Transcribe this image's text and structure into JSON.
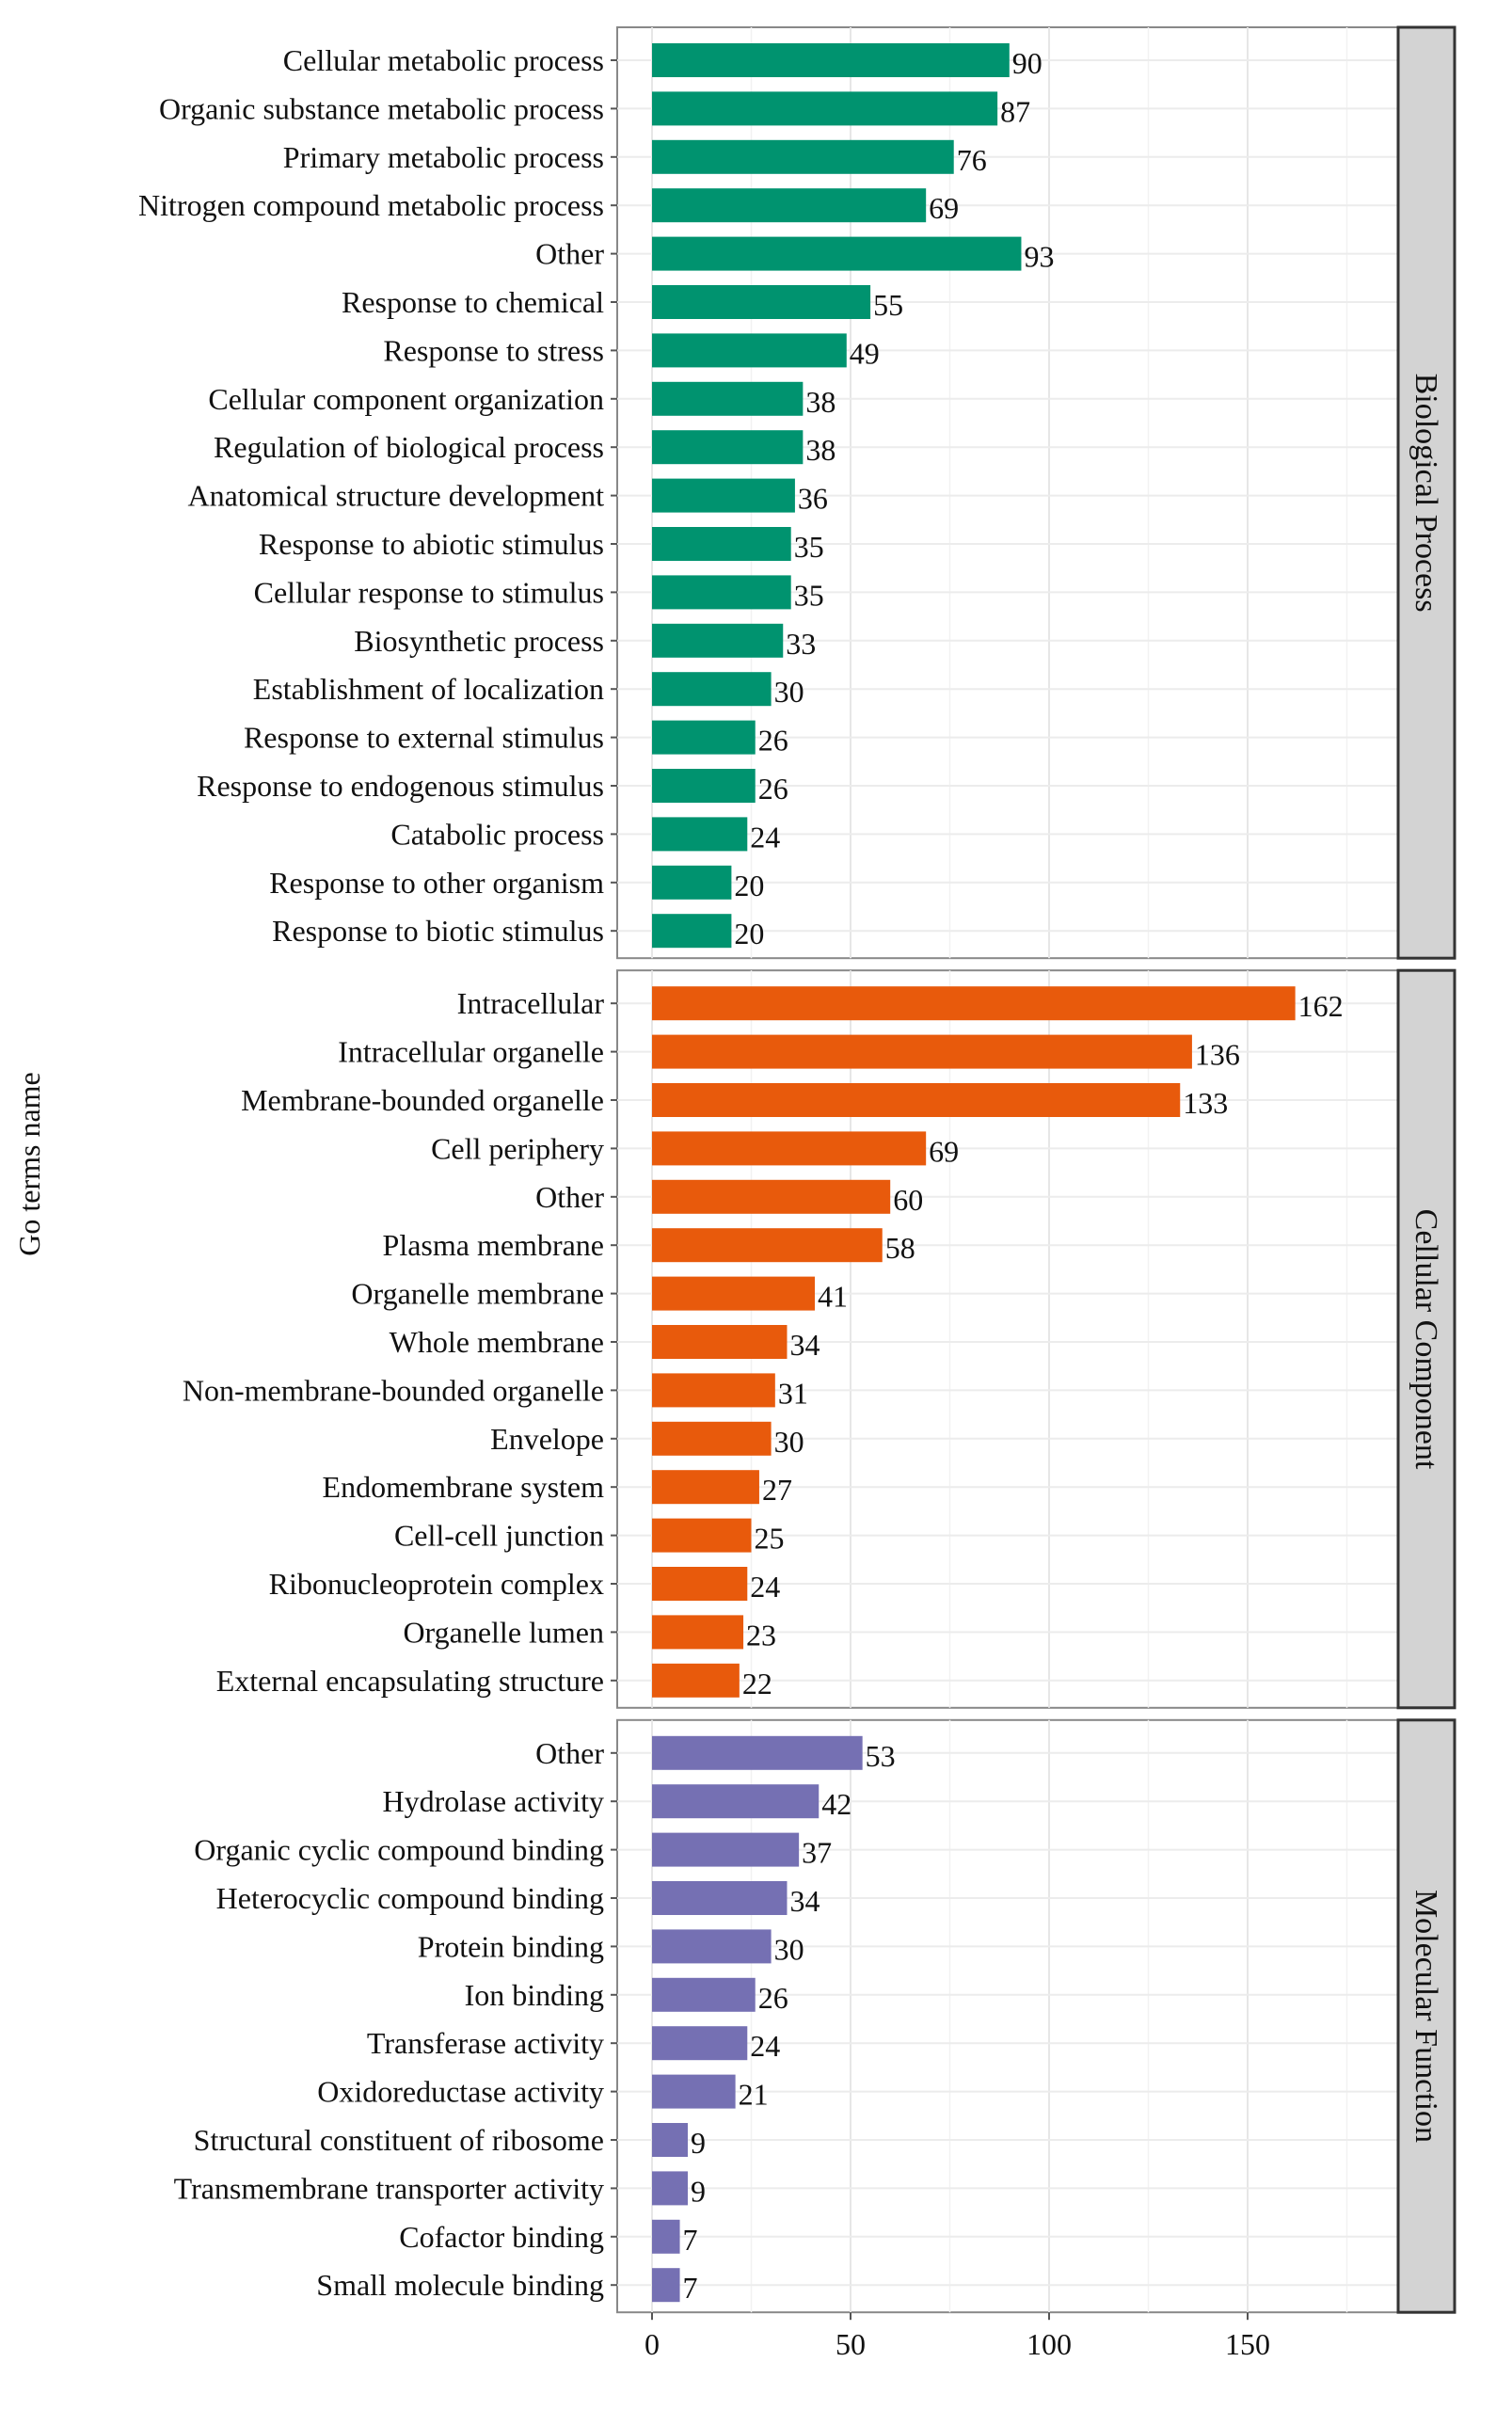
{
  "chart_data": {
    "type": "bar",
    "orientation": "horizontal",
    "title": "",
    "xlabel": "",
    "ylabel": "Go terms name",
    "xlim": [
      0,
      188
    ],
    "xticks": [
      0,
      50,
      100,
      150
    ],
    "grid": true,
    "panels": [
      {
        "name": "Biological Process",
        "color": "#00936f",
        "categories": [
          "Cellular metabolic process",
          "Organic substance metabolic process",
          "Primary metabolic process",
          "Nitrogen compound metabolic process",
          "Other",
          "Response to chemical",
          "Response to stress",
          "Cellular component organization",
          "Regulation of biological process",
          "Anatomical structure development",
          "Response to abiotic stimulus",
          "Cellular response to stimulus",
          "Biosynthetic process",
          "Establishment of localization",
          "Response to external stimulus",
          "Response to endogenous stimulus",
          "Catabolic process",
          "Response to other organism",
          "Response to biotic stimulus"
        ],
        "values": [
          90,
          87,
          76,
          69,
          93,
          55,
          49,
          38,
          38,
          36,
          35,
          35,
          33,
          30,
          26,
          26,
          24,
          20,
          20
        ]
      },
      {
        "name": "Cellular Component",
        "color": "#e85a0c",
        "categories": [
          "Intracellular",
          "Intracellular organelle",
          "Membrane-bounded organelle",
          "Cell periphery",
          "Other",
          "Plasma membrane",
          "Organelle membrane",
          "Whole membrane",
          "Non-membrane-bounded organelle",
          "Envelope",
          "Endomembrane system",
          "Cell-cell junction",
          "Ribonucleoprotein complex",
          "Organelle lumen",
          "External encapsulating structure"
        ],
        "values": [
          162,
          136,
          133,
          69,
          60,
          58,
          41,
          34,
          31,
          30,
          27,
          25,
          24,
          23,
          22
        ]
      },
      {
        "name": "Molecular Function",
        "color": "#7570b3",
        "categories": [
          "Other",
          "Hydrolase activity",
          "Organic cyclic compound binding",
          "Heterocyclic compound binding",
          "Protein binding",
          "Ion binding",
          "Transferase activity",
          "Oxidoreductase activity",
          "Structural constituent of ribosome",
          "Transmembrane transporter activity",
          "Cofactor binding",
          "Small molecule binding"
        ],
        "values": [
          53,
          42,
          37,
          34,
          30,
          26,
          24,
          21,
          9,
          9,
          7,
          7
        ]
      }
    ]
  }
}
